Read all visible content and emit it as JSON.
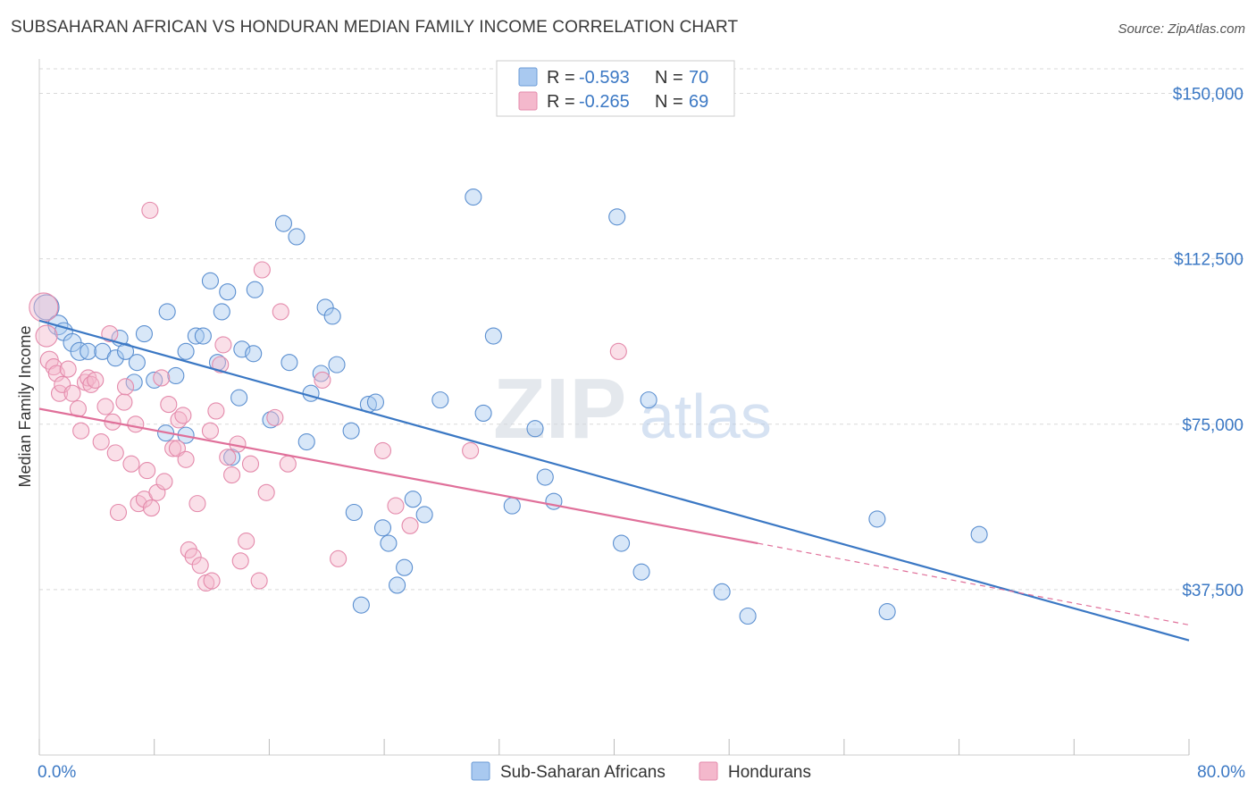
{
  "title": "SUBSAHARAN AFRICAN VS HONDURAN MEDIAN FAMILY INCOME CORRELATION CHART",
  "source": "Source: ZipAtlas.com",
  "watermark": {
    "zip": "ZIP",
    "atlas": "atlas"
  },
  "colors": {
    "blue": "#3b78c4",
    "blue_fill": "#a9c9f0",
    "pink": "#e0709a",
    "pink_fill": "#f4b8cc",
    "grid": "#d9d9d9"
  },
  "legend": {
    "rows": [
      {
        "r_label": "R = ",
        "r_value": "-0.593",
        "n_label": "N = ",
        "n_value": "70"
      },
      {
        "r_label": "R = ",
        "r_value": "-0.265",
        "n_label": "N = ",
        "n_value": "69"
      }
    ]
  },
  "chart_data": {
    "type": "scatter",
    "title": "SUBSAHARAN AFRICAN VS HONDURAN MEDIAN FAMILY INCOME CORRELATION CHART",
    "xlabel": "",
    "ylabel": "Median Family Income",
    "xlim": [
      0,
      80
    ],
    "ylim": [
      0,
      157000
    ],
    "x_tick_labels": [
      "0.0%",
      "80.0%"
    ],
    "y_ticks": [
      37500,
      75000,
      112500,
      150000
    ],
    "y_tick_labels": [
      "$37,500",
      "$75,000",
      "$112,500",
      "$150,000"
    ],
    "grid": true,
    "legend_position": "top-center",
    "series": [
      {
        "name": "Sub-Saharan Africans",
        "color": "#3b78c4",
        "trend": {
          "x": [
            0,
            80
          ],
          "y": [
            98500,
            26000
          ],
          "r": -0.593,
          "n": 70
        },
        "points": [
          [
            0.5,
            101500,
            14
          ],
          [
            1.3,
            97500,
            11
          ],
          [
            1.7,
            96000,
            10
          ],
          [
            2.3,
            93500,
            10
          ],
          [
            2.8,
            91500,
            10
          ],
          [
            3.4,
            91500,
            9
          ],
          [
            4.4,
            91500,
            9
          ],
          [
            5.3,
            90000,
            9
          ],
          [
            5.6,
            94500,
            9
          ],
          [
            6,
            91500,
            9
          ],
          [
            6.6,
            84500,
            9
          ],
          [
            6.8,
            89000,
            9
          ],
          [
            7.3,
            95500,
            9
          ],
          [
            8.0,
            85000,
            9
          ],
          [
            8.8,
            73000,
            9
          ],
          [
            8.9,
            100500,
            9
          ],
          [
            9.5,
            86000,
            9
          ],
          [
            10.2,
            91500,
            9
          ],
          [
            10.2,
            72500,
            9
          ],
          [
            10.9,
            95000,
            9
          ],
          [
            11.4,
            95000,
            9
          ],
          [
            11.9,
            107500,
            9
          ],
          [
            12.4,
            89000,
            9
          ],
          [
            12.7,
            100500,
            9
          ],
          [
            13.1,
            105000,
            9
          ],
          [
            13.4,
            67500,
            9
          ],
          [
            13.9,
            81000,
            9
          ],
          [
            14.1,
            92000,
            9
          ],
          [
            14.9,
            91000,
            9
          ],
          [
            15.0,
            105500,
            9
          ],
          [
            16.1,
            76000,
            9
          ],
          [
            17.0,
            120500,
            9
          ],
          [
            17.4,
            89000,
            9
          ],
          [
            17.9,
            117500,
            9
          ],
          [
            18.6,
            71000,
            9
          ],
          [
            18.9,
            82000,
            9
          ],
          [
            19.6,
            86500,
            9
          ],
          [
            19.9,
            101500,
            9
          ],
          [
            20.4,
            99500,
            9
          ],
          [
            20.7,
            88500,
            9
          ],
          [
            21.7,
            73500,
            9
          ],
          [
            21.9,
            55000,
            9
          ],
          [
            22.4,
            34000,
            9
          ],
          [
            22.9,
            79500,
            9
          ],
          [
            23.4,
            80000,
            9
          ],
          [
            23.9,
            51500,
            9
          ],
          [
            24.3,
            48000,
            9
          ],
          [
            24.9,
            38500,
            9
          ],
          [
            25.4,
            42500,
            9
          ],
          [
            26.0,
            58000,
            9
          ],
          [
            26.8,
            54500,
            9
          ],
          [
            27.9,
            80500,
            9
          ],
          [
            30.2,
            126500,
            9
          ],
          [
            30.9,
            77500,
            9
          ],
          [
            31.6,
            95000,
            9
          ],
          [
            32.9,
            56500,
            9
          ],
          [
            34.5,
            74000,
            9
          ],
          [
            35.2,
            63000,
            9
          ],
          [
            35.8,
            57500,
            9
          ],
          [
            40.2,
            122000,
            9
          ],
          [
            40.5,
            48000,
            9
          ],
          [
            41.9,
            41500,
            9
          ],
          [
            42.4,
            80500,
            9
          ],
          [
            47.5,
            37000,
            9
          ],
          [
            49.3,
            31500,
            9
          ],
          [
            58.3,
            53500,
            9
          ],
          [
            59.0,
            32500,
            9
          ],
          [
            65.4,
            50000,
            9
          ]
        ]
      },
      {
        "name": "Hondurans",
        "color": "#e0709a",
        "trend": {
          "x": [
            0,
            50
          ],
          "y": [
            78500,
            48000
          ],
          "x_dashed_end": 80,
          "y_dashed_end": 29500,
          "r": -0.265,
          "n": 69
        },
        "points": [
          [
            0.3,
            101500,
            16
          ],
          [
            0.5,
            95000,
            12
          ],
          [
            0.7,
            89500,
            10
          ],
          [
            1.0,
            88000,
            9
          ],
          [
            1.2,
            86500,
            9
          ],
          [
            1.4,
            82000,
            9
          ],
          [
            1.6,
            84000,
            9
          ],
          [
            2.0,
            87500,
            9
          ],
          [
            2.3,
            82000,
            9
          ],
          [
            2.7,
            78500,
            9
          ],
          [
            2.9,
            73500,
            9
          ],
          [
            3.2,
            84500,
            9
          ],
          [
            3.4,
            85500,
            9
          ],
          [
            3.6,
            84000,
            9
          ],
          [
            3.9,
            85000,
            9
          ],
          [
            4.3,
            71000,
            9
          ],
          [
            4.6,
            79000,
            9
          ],
          [
            4.9,
            95500,
            9
          ],
          [
            5.1,
            75500,
            9
          ],
          [
            5.3,
            68500,
            9
          ],
          [
            5.5,
            55000,
            9
          ],
          [
            5.9,
            80000,
            9
          ],
          [
            6.0,
            83500,
            9
          ],
          [
            6.4,
            66000,
            9
          ],
          [
            6.7,
            75000,
            9
          ],
          [
            6.9,
            57000,
            9
          ],
          [
            7.3,
            58000,
            9
          ],
          [
            7.5,
            64500,
            9
          ],
          [
            7.7,
            123500,
            9
          ],
          [
            7.8,
            56000,
            9
          ],
          [
            8.2,
            59500,
            9
          ],
          [
            8.5,
            85500,
            9
          ],
          [
            8.7,
            62000,
            9
          ],
          [
            9.0,
            79500,
            9
          ],
          [
            9.3,
            69500,
            9
          ],
          [
            9.6,
            69500,
            9
          ],
          [
            9.7,
            76000,
            9
          ],
          [
            10.0,
            77000,
            9
          ],
          [
            10.2,
            67000,
            9
          ],
          [
            10.4,
            46500,
            9
          ],
          [
            10.7,
            45000,
            9
          ],
          [
            11.0,
            57000,
            9
          ],
          [
            11.2,
            43000,
            9
          ],
          [
            11.6,
            39000,
            9
          ],
          [
            11.9,
            73500,
            9
          ],
          [
            12.0,
            39500,
            9
          ],
          [
            12.3,
            78000,
            9
          ],
          [
            12.6,
            88500,
            9
          ],
          [
            12.8,
            93000,
            9
          ],
          [
            13.1,
            67500,
            9
          ],
          [
            13.4,
            63500,
            9
          ],
          [
            13.8,
            70500,
            9
          ],
          [
            14.0,
            44000,
            9
          ],
          [
            14.4,
            48500,
            9
          ],
          [
            14.7,
            66000,
            9
          ],
          [
            15.3,
            39500,
            9
          ],
          [
            15.5,
            110000,
            9
          ],
          [
            15.8,
            59500,
            9
          ],
          [
            16.4,
            76500,
            9
          ],
          [
            16.8,
            100500,
            9
          ],
          [
            17.3,
            66000,
            9
          ],
          [
            19.7,
            85000,
            9
          ],
          [
            20.8,
            44500,
            9
          ],
          [
            23.9,
            69000,
            9
          ],
          [
            24.8,
            56500,
            9
          ],
          [
            25.8,
            52000,
            9
          ],
          [
            30.0,
            69000,
            9
          ],
          [
            40.3,
            91500,
            9
          ]
        ]
      }
    ]
  }
}
